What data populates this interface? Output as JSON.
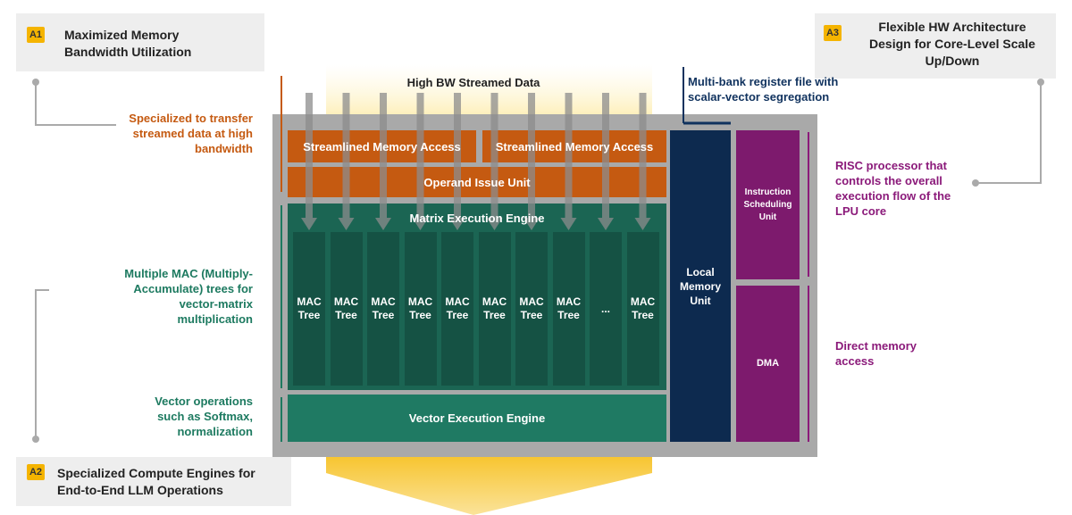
{
  "callouts": [
    {
      "badge": "A1",
      "title": "Maximized Memory Bandwidth Utilization"
    },
    {
      "badge": "A2",
      "title": "Specialized Compute Engines for End-to-End LLM Operations"
    },
    {
      "badge": "A3",
      "title": "Flexible HW Architecture Design for Core-Level Scale Up/Down"
    }
  ],
  "annotations": {
    "top_input": "High BW Streamed Data",
    "register_file": "Multi-bank register file with scalar-vector segregation",
    "memory_access": "Specialized to transfer streamed data at high bandwidth",
    "mac_trees": "Multiple MAC (Multiply-Accumulate) trees for vector-matrix multiplication",
    "vector_ops": "Vector operations such as Softmax, normalization",
    "risc": "RISC processor that controls the overall execution flow of the LPU core",
    "dma": "Direct memory access"
  },
  "blocks": {
    "memory_access_1": "Streamlined Memory Access",
    "memory_access_2": "Streamlined Memory Access",
    "operand_issue": "Operand Issue Unit",
    "matrix_engine": "Matrix Execution Engine",
    "mac_columns": [
      "MAC Tree",
      "MAC Tree",
      "MAC Tree",
      "MAC Tree",
      "MAC Tree",
      "MAC Tree",
      "MAC Tree",
      "MAC Tree",
      "...",
      "MAC Tree"
    ],
    "vector_engine": "Vector Execution Engine",
    "local_memory": "Local Memory Unit",
    "instruction_scheduling": "Instruction Scheduling Unit",
    "dma": "DMA"
  }
}
